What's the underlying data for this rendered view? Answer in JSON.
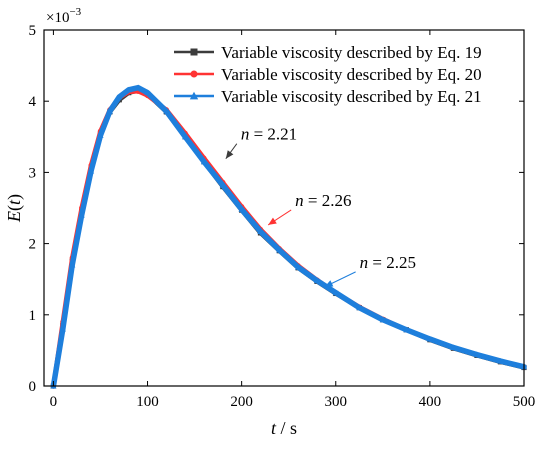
{
  "chart_data": {
    "type": "line",
    "xlabel_var": "t",
    "xlabel_unit": "/ s",
    "ylabel_var": "E",
    "ylabel_arg": "t",
    "y_multiplier_base": "×10",
    "y_multiplier_exp": "−3",
    "xlim": [
      -10,
      500
    ],
    "ylim": [
      0,
      5
    ],
    "xticks": [
      0,
      100,
      200,
      300,
      400,
      500
    ],
    "yticks": [
      0,
      1,
      2,
      3,
      4,
      5
    ],
    "legend_position": "top-right",
    "series": [
      {
        "name": "Variable viscosity described by Eq. 19",
        "color": "#3c3c3c",
        "marker": "square",
        "n_label": "2.21",
        "x": [
          0,
          10,
          20,
          30,
          40,
          50,
          60,
          70,
          80,
          90,
          100,
          120,
          140,
          160,
          180,
          200,
          220,
          240,
          260,
          280,
          300,
          325,
          350,
          375,
          400,
          425,
          450,
          475,
          500
        ],
        "y": [
          0.0,
          0.85,
          1.75,
          2.45,
          3.05,
          3.55,
          3.85,
          4.02,
          4.12,
          4.15,
          4.1,
          3.85,
          3.5,
          3.15,
          2.8,
          2.47,
          2.15,
          1.9,
          1.66,
          1.47,
          1.3,
          1.1,
          0.93,
          0.79,
          0.65,
          0.53,
          0.43,
          0.34,
          0.26
        ]
      },
      {
        "name": "Variable viscosity described by Eq. 20",
        "color": "#ff3333",
        "marker": "circle",
        "n_label": "2.26",
        "x": [
          0,
          10,
          20,
          30,
          40,
          50,
          60,
          70,
          80,
          90,
          100,
          120,
          140,
          160,
          180,
          200,
          220,
          240,
          260,
          280,
          300,
          325,
          350,
          375,
          400,
          425,
          450,
          475,
          500
        ],
        "y": [
          0.0,
          0.9,
          1.8,
          2.5,
          3.1,
          3.58,
          3.88,
          4.05,
          4.13,
          4.14,
          4.08,
          3.88,
          3.55,
          3.2,
          2.86,
          2.52,
          2.2,
          1.93,
          1.69,
          1.49,
          1.31,
          1.11,
          0.94,
          0.79,
          0.66,
          0.54,
          0.44,
          0.35,
          0.27
        ]
      },
      {
        "name": "Variable viscosity described by Eq. 21",
        "color": "#1e7fdc",
        "marker": "triangle",
        "n_label": "2.25",
        "x": [
          0,
          10,
          20,
          30,
          40,
          50,
          60,
          70,
          80,
          90,
          100,
          120,
          140,
          160,
          180,
          200,
          220,
          240,
          260,
          280,
          300,
          325,
          350,
          375,
          400,
          425,
          450,
          475,
          500
        ],
        "y": [
          0.0,
          0.8,
          1.7,
          2.4,
          3.02,
          3.52,
          3.86,
          4.06,
          4.16,
          4.19,
          4.12,
          3.86,
          3.5,
          3.15,
          2.82,
          2.48,
          2.17,
          1.91,
          1.67,
          1.48,
          1.31,
          1.1,
          0.93,
          0.79,
          0.66,
          0.54,
          0.44,
          0.35,
          0.27
        ]
      }
    ],
    "annotations": [
      {
        "prefix": "n",
        "eq": " = ",
        "value": "2.21",
        "at_x": 180,
        "at_y": 3.15,
        "color": "#3c3c3c"
      },
      {
        "prefix": "n",
        "eq": " = ",
        "value": "2.26",
        "at_x": 225,
        "at_y": 2.22,
        "color": "#ff3333"
      },
      {
        "prefix": "n",
        "eq": " = ",
        "value": "2.25",
        "at_x": 285,
        "at_y": 1.35,
        "color": "#1e7fdc"
      }
    ]
  }
}
